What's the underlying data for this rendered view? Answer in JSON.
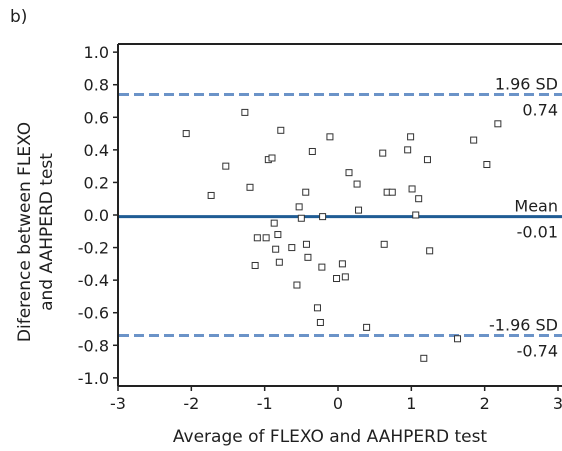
{
  "panel_label": "b)",
  "chart_data": {
    "type": "scatter",
    "xlabel": "Average of FLEXO and AAHPERD test",
    "ylabel_lines": [
      "Diference between FLEXO",
      "and AAHPERD test"
    ],
    "xlim": [
      -3,
      3
    ],
    "ylim": [
      -1.05,
      1.05
    ],
    "x_ticks": [
      -3,
      -2,
      -1,
      0,
      1,
      2,
      3
    ],
    "x_tick_labels": [
      "-3",
      "-2",
      "-1",
      "0",
      "1",
      "2",
      "3"
    ],
    "y_ticks": [
      -1.0,
      -0.8,
      -0.6,
      -0.4,
      -0.2,
      0.0,
      0.2,
      0.4,
      0.6,
      0.8,
      1.0
    ],
    "y_tick_labels": [
      "-1.0",
      "-0.8",
      "-0.6",
      "-0.4",
      "-0.2",
      "0.0",
      "0.2",
      "0.4",
      "0.6",
      "0.8",
      "1.0"
    ],
    "grid": false,
    "reference_lines": [
      {
        "value": 0.74,
        "style": "dashed",
        "label": "1.96 SD",
        "value_label": "0.74",
        "color": "#6b93c8"
      },
      {
        "value": -0.01,
        "style": "solid",
        "label": "Mean",
        "value_label": "-0.01",
        "color": "#1f5c94"
      },
      {
        "value": -0.74,
        "style": "dashed",
        "label": "-1.96 SD",
        "value_label": "-0.74",
        "color": "#6b93c8"
      }
    ],
    "points": [
      [
        -2.07,
        0.5
      ],
      [
        -1.73,
        0.12
      ],
      [
        -1.53,
        0.3
      ],
      [
        -1.27,
        0.63
      ],
      [
        -1.2,
        0.17
      ],
      [
        -1.13,
        -0.31
      ],
      [
        -1.1,
        -0.14
      ],
      [
        -0.98,
        -0.14
      ],
      [
        -0.95,
        0.34
      ],
      [
        -0.9,
        0.35
      ],
      [
        -0.87,
        -0.05
      ],
      [
        -0.85,
        -0.21
      ],
      [
        -0.82,
        -0.12
      ],
      [
        -0.8,
        -0.29
      ],
      [
        -0.78,
        0.52
      ],
      [
        -0.63,
        -0.2
      ],
      [
        -0.56,
        -0.43
      ],
      [
        -0.53,
        0.05
      ],
      [
        -0.5,
        -0.02
      ],
      [
        -0.44,
        0.14
      ],
      [
        -0.43,
        -0.18
      ],
      [
        -0.41,
        -0.26
      ],
      [
        -0.35,
        0.39
      ],
      [
        -0.28,
        -0.57
      ],
      [
        -0.24,
        -0.66
      ],
      [
        -0.22,
        -0.32
      ],
      [
        -0.21,
        -0.01
      ],
      [
        -0.11,
        0.48
      ],
      [
        -0.02,
        -0.39
      ],
      [
        0.06,
        -0.3
      ],
      [
        0.1,
        -0.38
      ],
      [
        0.15,
        0.26
      ],
      [
        0.26,
        0.19
      ],
      [
        0.28,
        0.03
      ],
      [
        0.39,
        -0.69
      ],
      [
        0.61,
        0.38
      ],
      [
        0.63,
        -0.18
      ],
      [
        0.67,
        0.14
      ],
      [
        0.74,
        0.14
      ],
      [
        0.95,
        0.4
      ],
      [
        0.99,
        0.48
      ],
      [
        1.01,
        0.16
      ],
      [
        1.06,
        0.0
      ],
      [
        1.1,
        0.1
      ],
      [
        1.17,
        -0.88
      ],
      [
        1.22,
        0.34
      ],
      [
        1.25,
        -0.22
      ],
      [
        1.63,
        -0.76
      ],
      [
        1.85,
        0.46
      ],
      [
        2.03,
        0.31
      ],
      [
        2.18,
        0.56
      ]
    ]
  }
}
